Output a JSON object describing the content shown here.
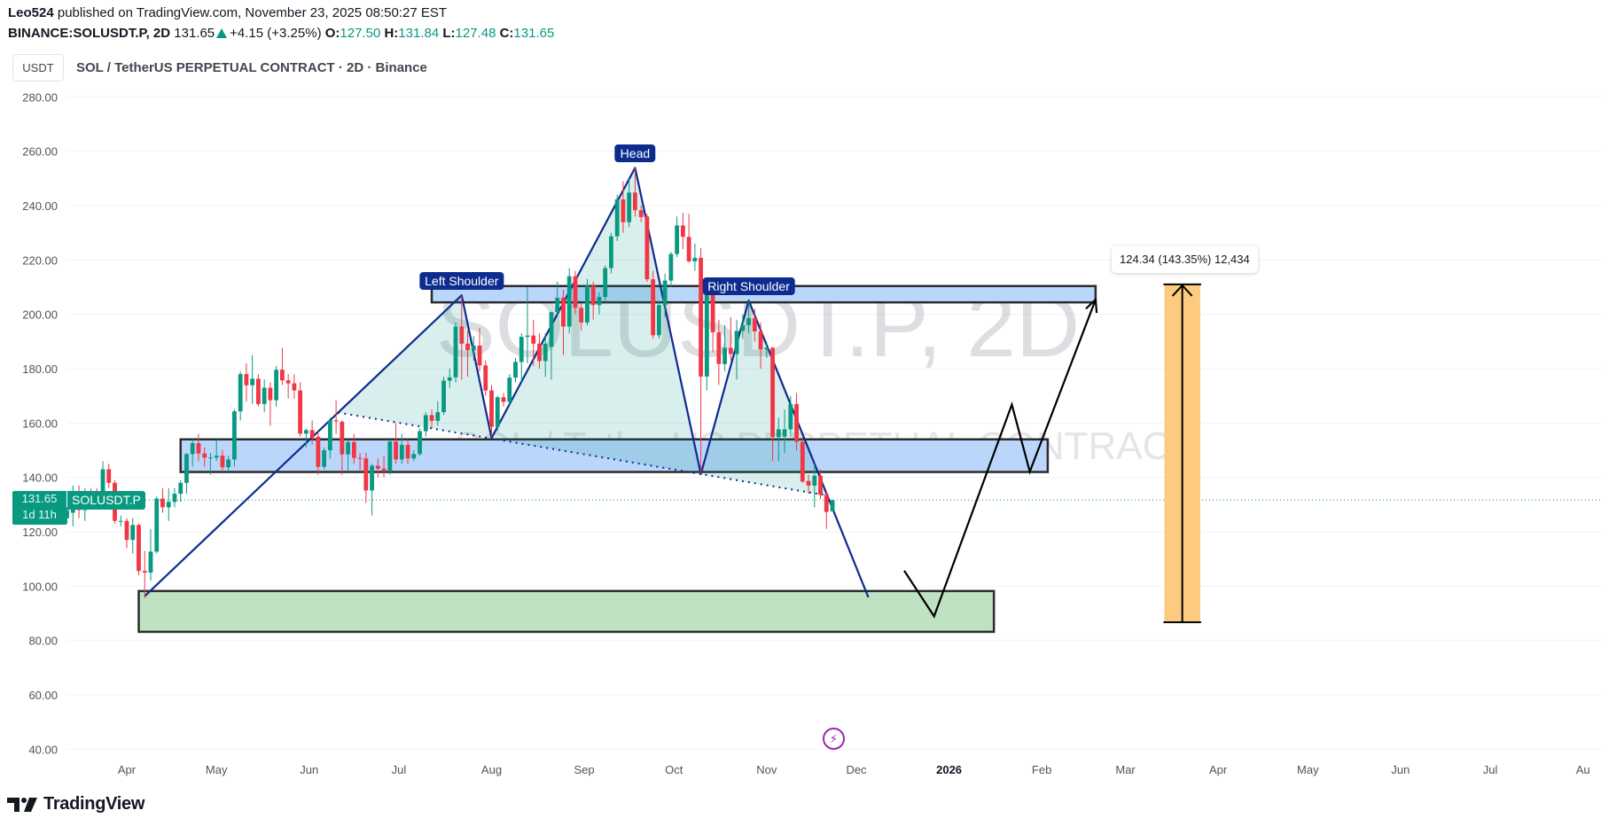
{
  "header": {
    "author": "Leo524",
    "published": "published on TradingView.com, November 23, 2025 08:50:27 EST",
    "symbol": "BINANCE:SOLUSDT.P, 2D",
    "last": "131.65",
    "change": "+4.15 (+3.25%)",
    "o_label": "O:",
    "o": "127.50",
    "h_label": "H:",
    "h": "131.84",
    "l_label": "L:",
    "l": "127.48",
    "c_label": "C:",
    "c": "131.65"
  },
  "currency_button": "USDT",
  "symbol_title": "SOL / TetherUS PERPETUAL CONTRACT · 2D · Binance",
  "watermark": {
    "line1": "SOLUSDT.P, 2D",
    "line2": "SOL / TetherUS PERPETUAL CONTRACT"
  },
  "price_badge": {
    "price": "131.65",
    "countdown": "1d 11h",
    "symbol": "SOLUSDT.P"
  },
  "measure_tooltip": "124.34 (143.35%) 12,434",
  "logo_text": "TradingView",
  "colors": {
    "up": "#089981",
    "down": "#f23645",
    "pattern": "#0d2c8e",
    "zone_blue": "#bbd6fb",
    "zone_green": "#c0e2c3",
    "measure": "#fdcb80",
    "event": "#9c27b0"
  },
  "icons": {
    "event": "lightning-icon",
    "logo": "tradingview-logo"
  },
  "chart_data": {
    "type": "candlestick",
    "interval": "2D",
    "start_date": "2025-03-12",
    "interval_days": 2,
    "ylim": [
      40,
      280
    ],
    "y_ticks": [
      "280.00",
      "260.00",
      "240.00",
      "220.00",
      "200.00",
      "180.00",
      "160.00",
      "140.00",
      "120.00",
      "100.00",
      "80.00",
      "60.00",
      "40.00"
    ],
    "x_ticks": [
      {
        "label": "Apr",
        "date": "2025-04-01"
      },
      {
        "label": "May",
        "date": "2025-05-01"
      },
      {
        "label": "Jun",
        "date": "2025-06-01"
      },
      {
        "label": "Jul",
        "date": "2025-07-01"
      },
      {
        "label": "Aug",
        "date": "2025-08-01"
      },
      {
        "label": "Sep",
        "date": "2025-09-01"
      },
      {
        "label": "Oct",
        "date": "2025-10-01"
      },
      {
        "label": "Nov",
        "date": "2025-11-01"
      },
      {
        "label": "Dec",
        "date": "2025-12-01"
      },
      {
        "label": "2026",
        "date": "2026-01-01",
        "bold": true
      },
      {
        "label": "Feb",
        "date": "2026-02-01"
      },
      {
        "label": "Mar",
        "date": "2026-03-01"
      },
      {
        "label": "Apr",
        "date": "2026-04-01"
      },
      {
        "label": "May",
        "date": "2026-05-01"
      },
      {
        "label": "Jun",
        "date": "2026-06-01"
      },
      {
        "label": "Jul",
        "date": "2026-07-01"
      },
      {
        "label": "Au",
        "date": "2026-08-01"
      }
    ],
    "last_price": 131.65,
    "ohlc": [
      [
        125,
        129,
        123,
        128
      ],
      [
        127,
        137,
        122,
        135
      ],
      [
        135,
        137,
        125,
        128
      ],
      [
        128,
        136,
        124,
        135
      ],
      [
        135,
        136,
        132,
        134
      ],
      [
        134,
        136,
        131,
        133
      ],
      [
        134,
        146,
        133,
        143
      ],
      [
        143,
        145,
        136,
        138
      ],
      [
        138,
        139,
        123,
        124
      ],
      [
        124,
        126,
        122,
        124
      ],
      [
        124,
        125,
        114,
        117
      ],
      [
        117,
        125,
        112,
        122.5
      ],
      [
        122.5,
        123,
        104,
        105.6
      ],
      [
        105.6,
        113,
        95.5,
        105
      ],
      [
        105,
        121,
        102,
        112.7
      ],
      [
        112.7,
        133,
        112,
        132.2
      ],
      [
        132.2,
        136,
        127,
        129
      ],
      [
        129,
        136,
        124,
        131
      ],
      [
        131,
        136,
        129,
        134
      ],
      [
        134,
        139,
        131,
        138
      ],
      [
        138,
        149,
        134,
        148.6
      ],
      [
        148.6,
        154,
        144,
        152.6
      ],
      [
        152.6,
        156,
        146,
        148.8
      ],
      [
        148.8,
        151,
        144,
        147.3
      ],
      [
        147.3,
        149,
        141,
        147.3
      ],
      [
        147.3,
        154,
        146,
        148
      ],
      [
        148,
        150,
        142,
        143.7
      ],
      [
        143.7,
        148,
        142,
        146.6
      ],
      [
        146.6,
        165,
        144,
        164.3
      ],
      [
        164.3,
        179,
        161,
        178
      ],
      [
        178,
        182,
        168,
        173.9
      ],
      [
        173.9,
        185,
        167,
        176.3
      ],
      [
        176.3,
        178,
        166,
        167
      ],
      [
        167,
        176,
        164,
        173
      ],
      [
        173,
        175,
        159,
        168.4
      ],
      [
        168.4,
        181,
        166,
        179.6
      ],
      [
        179.6,
        187.7,
        174,
        175.7
      ],
      [
        175.7,
        178,
        169,
        174.6
      ],
      [
        174.6,
        178,
        169,
        172
      ],
      [
        172,
        175,
        155,
        156.1
      ],
      [
        156.1,
        158,
        151,
        157.4
      ],
      [
        157.4,
        161,
        152,
        154.8
      ],
      [
        155,
        157,
        141,
        143.9
      ],
      [
        143.9,
        151,
        143,
        150
      ],
      [
        150,
        162,
        147,
        161
      ],
      [
        161,
        168.4,
        156,
        160.6
      ],
      [
        160.5,
        161,
        141,
        148.5
      ],
      [
        148.5,
        154,
        142,
        153
      ],
      [
        153,
        156,
        145,
        147.2
      ],
      [
        147.2,
        149,
        142,
        147
      ],
      [
        147,
        149,
        130.6,
        135.2
      ],
      [
        135.2,
        145,
        126,
        144.3
      ],
      [
        144.3,
        147,
        140,
        143.2
      ],
      [
        143.2,
        148,
        140,
        142.2
      ],
      [
        142.2,
        154,
        141,
        153.2
      ],
      [
        153.2,
        160,
        145,
        146.6
      ],
      [
        146.6,
        156,
        145,
        152
      ],
      [
        152,
        154,
        145,
        147
      ],
      [
        147,
        150,
        146,
        148.6
      ],
      [
        148.6,
        158,
        148,
        157
      ],
      [
        157,
        164,
        155,
        162.9
      ],
      [
        162.9,
        165,
        158,
        160.8
      ],
      [
        160.8,
        168,
        159,
        164
      ],
      [
        164,
        177,
        163,
        175.6
      ],
      [
        175.6,
        180,
        173,
        176.8
      ],
      [
        176.8,
        197,
        175,
        195.5
      ],
      [
        195.5,
        206.9,
        176,
        189.2
      ],
      [
        189.2,
        194,
        177,
        186.8
      ],
      [
        186.8,
        192,
        183,
        188.5
      ],
      [
        188.5,
        195,
        179,
        181.2
      ],
      [
        181.2,
        183,
        170,
        172
      ],
      [
        172,
        174,
        155,
        158.6
      ],
      [
        158.6,
        170,
        157,
        169.5
      ],
      [
        169.5,
        171,
        166,
        167.8
      ],
      [
        167.8,
        178,
        166,
        176.7
      ],
      [
        176.7,
        184,
        175,
        182.5
      ],
      [
        182.5,
        193,
        175,
        191.7
      ],
      [
        191.7,
        210,
        182,
        192.2
      ],
      [
        192.2,
        198,
        181,
        189.2
      ],
      [
        189.2,
        193,
        180,
        182.8
      ],
      [
        182.8,
        193,
        177,
        189.2
      ],
      [
        188,
        201,
        176,
        200.8
      ],
      [
        200.8,
        212,
        199,
        206.1
      ],
      [
        206.1,
        209,
        185,
        195.5
      ],
      [
        195.5,
        217,
        193,
        214
      ],
      [
        214,
        216,
        200,
        202.4
      ],
      [
        202.4,
        204,
        194,
        197
      ],
      [
        197,
        213,
        196,
        210.5
      ],
      [
        210.5,
        212,
        198,
        203.4
      ],
      [
        203.4,
        208,
        200,
        206.4
      ],
      [
        206.4,
        218,
        205,
        217
      ],
      [
        217,
        230,
        215,
        228.7
      ],
      [
        228.7,
        244,
        227,
        242.3
      ],
      [
        242.3,
        249,
        230,
        233.9
      ],
      [
        233.9,
        250,
        232,
        244.8
      ],
      [
        244.8,
        253.9,
        236,
        238.3
      ],
      [
        238.3,
        240,
        234,
        235.8
      ],
      [
        236,
        237,
        212,
        212.9
      ],
      [
        212.9,
        216,
        191,
        192.3
      ],
      [
        192.3,
        205,
        191,
        203.4
      ],
      [
        203.4,
        215,
        199,
        212.4
      ],
      [
        212.4,
        223,
        210,
        222.2
      ],
      [
        222.2,
        236,
        221,
        232.7
      ],
      [
        232.7,
        237.4,
        224,
        228.5
      ],
      [
        228.5,
        237,
        219,
        219.5
      ],
      [
        219.5,
        226,
        216,
        220.8
      ],
      [
        220.8,
        224.3,
        141.2,
        177.1
      ],
      [
        177.1,
        210,
        172,
        209.1
      ],
      [
        209.1,
        211,
        186,
        193.4
      ],
      [
        193.4,
        198,
        174,
        181.7
      ],
      [
        181.7,
        196,
        179,
        187.7
      ],
      [
        187.7,
        199,
        183,
        185.4
      ],
      [
        185.4,
        198,
        176,
        193.9
      ],
      [
        193.9,
        200,
        191,
        196
      ],
      [
        196,
        205,
        193,
        198.6
      ],
      [
        198.6,
        202,
        190,
        193.7
      ],
      [
        193.7,
        197,
        180,
        187.1
      ],
      [
        187.1,
        190,
        184,
        187.7
      ],
      [
        187.7,
        188,
        146,
        154.8
      ],
      [
        154.8,
        162,
        146,
        157.7
      ],
      [
        155,
        165,
        149,
        157.7
      ],
      [
        157.7,
        170,
        155,
        167
      ],
      [
        167,
        171,
        150,
        153.1
      ],
      [
        153.1,
        155,
        138,
        138.5
      ],
      [
        138.7,
        141,
        134,
        137
      ],
      [
        137,
        145,
        129,
        140.6
      ],
      [
        140.6,
        143,
        132,
        133.6
      ],
      [
        133.6,
        135,
        121.1,
        127.3
      ],
      [
        127.5,
        131.84,
        127.48,
        131.65
      ]
    ],
    "drawings": {
      "zones": [
        {
          "name": "support-zone-lower",
          "from": "2025-04-19",
          "to": "2026-02-03",
          "top": 154.0,
          "bottom": 142.0,
          "color": "#bbd6fb"
        },
        {
          "name": "resistance-zone-upper",
          "from": "2025-07-12",
          "to": "2026-02-19",
          "top": 210.4,
          "bottom": 204.4,
          "color": "#bbd6fb"
        },
        {
          "name": "target-zone-green",
          "from": "2025-04-05",
          "to": "2026-01-16",
          "top": 98.2,
          "bottom": 83.2,
          "color": "#c0e2c3"
        }
      ],
      "head_and_shoulders": [
        [
          "2025-04-07",
          96.3
        ],
        [
          "2025-07-22",
          207.0
        ],
        [
          "2025-08-01",
          154.5
        ],
        [
          "2025-09-18",
          253.9
        ],
        [
          "2025-10-10",
          141.2
        ],
        [
          "2025-10-26",
          205.1
        ],
        [
          "2025-12-05",
          95.9
        ]
      ],
      "pattern_labels": [
        {
          "text": "Left Shoulder",
          "at": 1
        },
        {
          "text": "Head",
          "at": 3
        },
        {
          "text": "Right Shoulder",
          "at": 5
        }
      ],
      "neckline": [
        [
          "2025-06-10",
          164.0
        ],
        [
          "2025-11-21",
          133.4
        ]
      ],
      "projection_path": [
        [
          "2025-12-17",
          105.7
        ],
        [
          "2025-12-27",
          88.9
        ],
        [
          "2026-01-22",
          166.8
        ],
        [
          "2026-01-28",
          142.1
        ],
        [
          "2026-02-19",
          205.4
        ]
      ],
      "price_range": {
        "from": "2026-03-14",
        "to": "2026-03-26",
        "low": 86.7,
        "high": 211.0,
        "change": 124.34,
        "percent": 143.35,
        "ticks": 12434
      }
    }
  }
}
